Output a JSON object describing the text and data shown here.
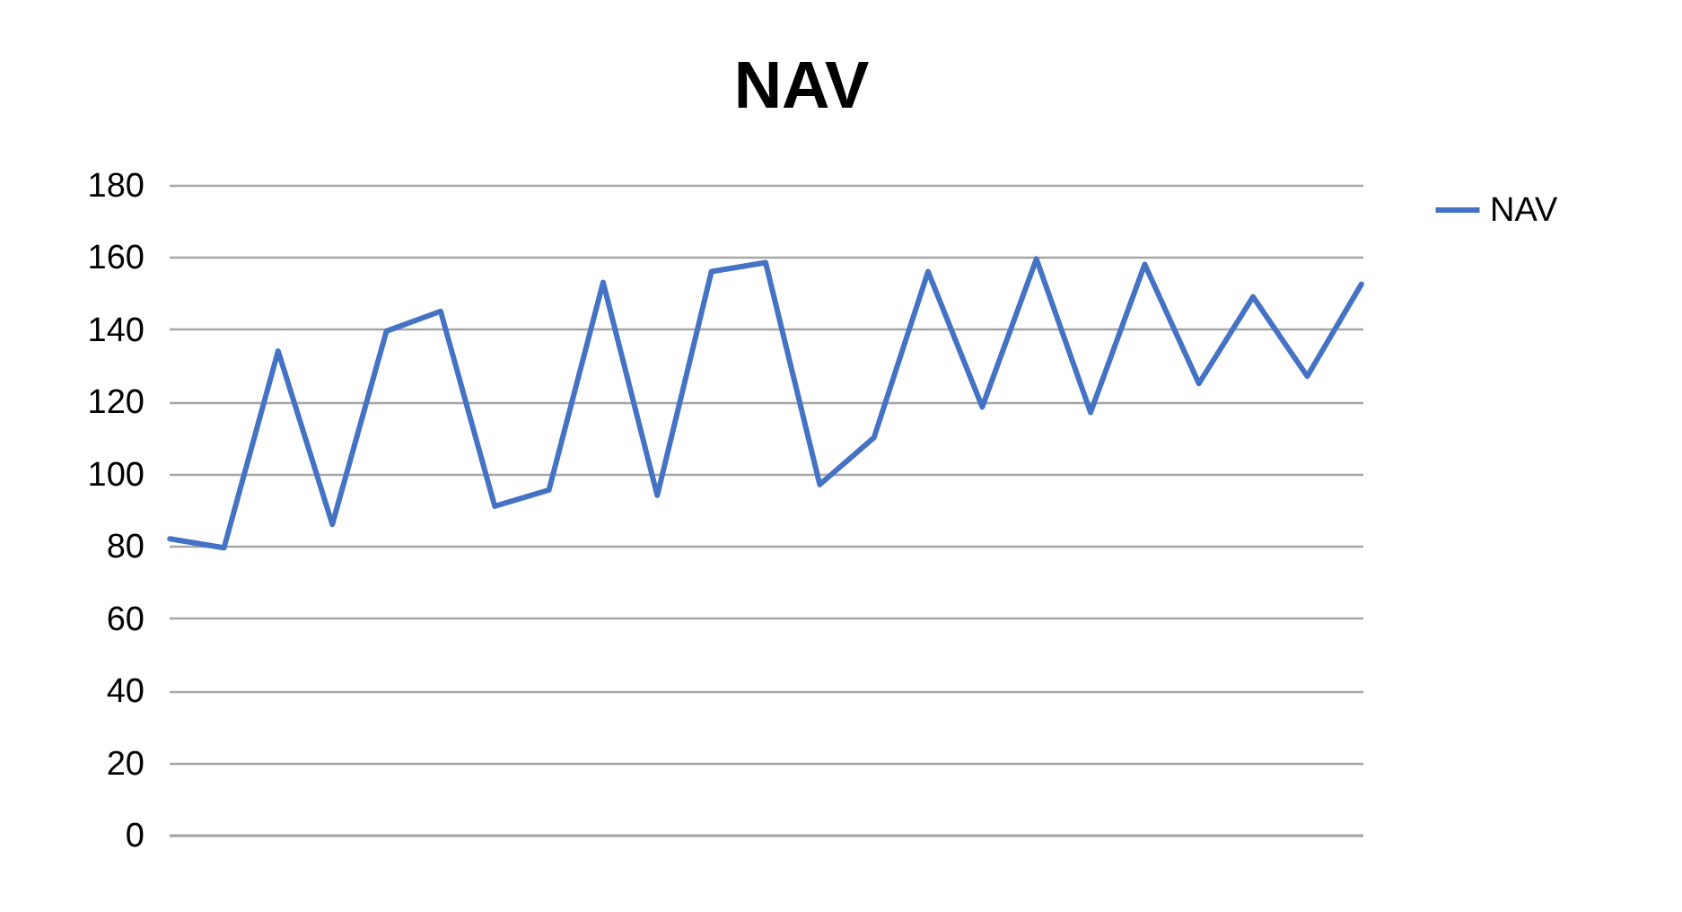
{
  "chart_data": {
    "type": "line",
    "title": "NAV",
    "categories": [
      null,
      null,
      null,
      null,
      null,
      null,
      null,
      null,
      null,
      null,
      null,
      null,
      null,
      null,
      null,
      null,
      null,
      null,
      null,
      null,
      null,
      null,
      null
    ],
    "series": [
      {
        "name": "NAV",
        "color": "#4472c4",
        "values": [
          82,
          79.5,
          134,
          86,
          139.5,
          145,
          91,
          95.5,
          153,
          94,
          156,
          158.5,
          97,
          110,
          156,
          118.5,
          159.5,
          117,
          158,
          125,
          149,
          127,
          152.5
        ]
      }
    ],
    "ylim": [
      0,
      180
    ],
    "yticks": [
      0,
      20,
      40,
      60,
      80,
      100,
      120,
      140,
      160,
      180
    ],
    "grid": "y",
    "legend": "right",
    "tick_labels": "y",
    "marker": "none",
    "line_style": "solid"
  }
}
